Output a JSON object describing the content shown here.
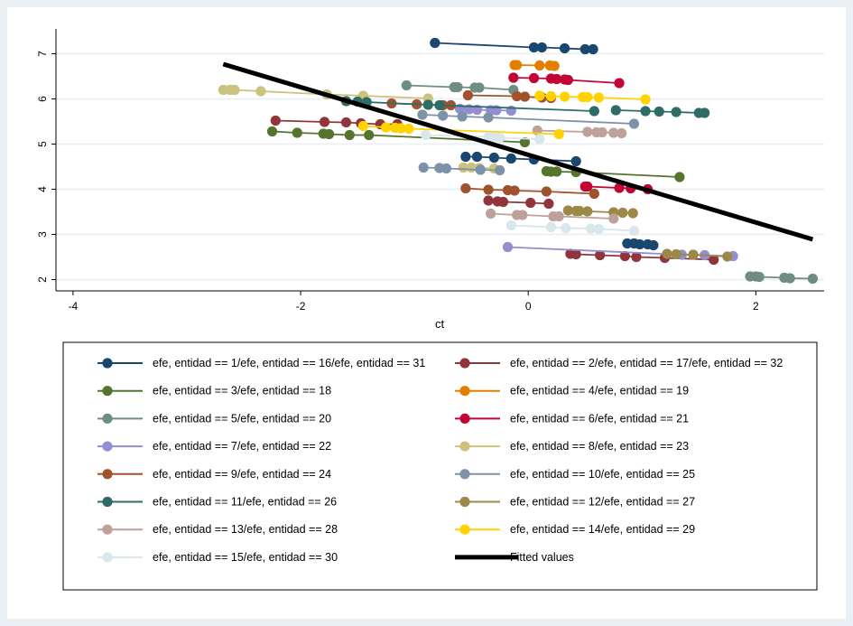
{
  "chart_data": {
    "type": "line",
    "title": "",
    "xlabel": "ct",
    "ylabel": "",
    "xlim": [
      -4.15,
      2.6
    ],
    "ylim": [
      1.75,
      7.55
    ],
    "xticks": [
      -4,
      -2,
      0,
      2
    ],
    "xtick_labels": [
      "-4",
      "-2",
      "0",
      "2"
    ],
    "yticks": [
      2,
      3,
      4,
      5,
      6,
      7
    ],
    "ytick_labels": [
      "2",
      "3",
      "4",
      "5",
      "6",
      "7"
    ],
    "grid": true,
    "legend_position": "bottom",
    "series": [
      {
        "name": "efe, entidad == 1/efe, entidad == 16/efe, entidad == 31",
        "color": "#1a476f",
        "points": [
          [
            -0.82,
            7.24
          ],
          [
            0.05,
            7.14
          ],
          [
            0.12,
            7.14
          ],
          [
            0.32,
            7.12
          ],
          [
            0.5,
            7.1
          ],
          [
            0.57,
            7.1
          ]
        ]
      },
      {
        "name": "efe, entidad == 1/efe, entidad == 16/efe, entidad == 31",
        "color": "#1a476f",
        "points": [
          [
            -0.55,
            4.72
          ],
          [
            -0.45,
            4.72
          ],
          [
            -0.3,
            4.7
          ],
          [
            -0.15,
            4.68
          ],
          [
            0.05,
            4.66
          ],
          [
            0.42,
            4.62
          ]
        ]
      },
      {
        "name": "efe, entidad == 1/efe, entidad == 16/efe, entidad == 31",
        "color": "#1a476f",
        "points": [
          [
            0.87,
            2.8
          ],
          [
            0.93,
            2.8
          ],
          [
            0.98,
            2.78
          ],
          [
            1.05,
            2.78
          ],
          [
            1.1,
            2.76
          ]
        ]
      },
      {
        "name": "efe, entidad == 2/efe, entidad == 17/efe, entidad == 32",
        "color": "#90353b",
        "points": [
          [
            -2.22,
            5.52
          ],
          [
            -1.79,
            5.49
          ],
          [
            -1.6,
            5.48
          ],
          [
            -1.47,
            5.46
          ],
          [
            -1.3,
            5.44
          ],
          [
            -1.15,
            5.44
          ]
        ]
      },
      {
        "name": "efe, entidad == 2/efe, entidad == 17/efe, entidad == 32",
        "color": "#90353b",
        "points": [
          [
            -0.35,
            3.75
          ],
          [
            -0.27,
            3.73
          ],
          [
            -0.22,
            3.72
          ],
          [
            0.02,
            3.7
          ],
          [
            0.18,
            3.68
          ]
        ]
      },
      {
        "name": "efe, entidad == 2/efe, entidad == 17/efe, entidad == 32",
        "color": "#90353b",
        "points": [
          [
            0.37,
            2.57
          ],
          [
            0.42,
            2.56
          ],
          [
            0.63,
            2.54
          ],
          [
            0.85,
            2.52
          ],
          [
            0.95,
            2.5
          ],
          [
            1.2,
            2.48
          ],
          [
            1.63,
            2.44
          ]
        ]
      },
      {
        "name": "efe, entidad == 3/efe, entidad == 18",
        "color": "#55752f",
        "points": [
          [
            -2.25,
            5.28
          ],
          [
            -2.03,
            5.25
          ],
          [
            -1.8,
            5.23
          ],
          [
            -1.75,
            5.22
          ],
          [
            -1.57,
            5.2
          ],
          [
            -1.4,
            5.2
          ],
          [
            -0.03,
            5.04
          ]
        ]
      },
      {
        "name": "efe, entidad == 3/efe, entidad == 18",
        "color": "#55752f",
        "points": [
          [
            0.16,
            4.4
          ],
          [
            0.2,
            4.39
          ],
          [
            0.25,
            4.39
          ],
          [
            0.42,
            4.38
          ],
          [
            1.33,
            4.27
          ]
        ]
      },
      {
        "name": "efe, entidad == 4/efe, entidad == 19",
        "color": "#e37e00",
        "points": [
          [
            -0.12,
            6.75
          ],
          [
            -0.1,
            6.75
          ],
          [
            0.1,
            6.74
          ],
          [
            0.19,
            6.74
          ],
          [
            0.23,
            6.73
          ]
        ]
      },
      {
        "name": "efe, entidad == 5/efe, entidad == 20",
        "color": "#6e8e84",
        "points": [
          [
            -1.07,
            6.3
          ],
          [
            -0.65,
            6.26
          ],
          [
            -0.62,
            6.26
          ],
          [
            -0.47,
            6.25
          ],
          [
            -0.43,
            6.25
          ],
          [
            -0.13,
            6.2
          ]
        ]
      },
      {
        "name": "efe, entidad == 5/efe, entidad == 20",
        "color": "#6e8e84",
        "points": [
          [
            1.95,
            2.07
          ],
          [
            2.0,
            2.07
          ],
          [
            2.03,
            2.06
          ],
          [
            2.25,
            2.04
          ],
          [
            2.3,
            2.03
          ],
          [
            2.5,
            2.02
          ]
        ]
      },
      {
        "name": "efe, entidad == 6/efe, entidad == 21",
        "color": "#c10534",
        "points": [
          [
            -0.13,
            6.47
          ],
          [
            0.05,
            6.46
          ],
          [
            0.2,
            6.45
          ],
          [
            0.25,
            6.44
          ],
          [
            0.32,
            6.43
          ],
          [
            0.35,
            6.42
          ],
          [
            0.8,
            6.35
          ]
        ]
      },
      {
        "name": "efe, entidad == 6/efe, entidad == 21",
        "color": "#c10534",
        "points": [
          [
            0.5,
            4.06
          ],
          [
            0.52,
            4.06
          ],
          [
            0.8,
            4.03
          ],
          [
            0.9,
            4.02
          ],
          [
            1.05,
            4.0
          ]
        ]
      },
      {
        "name": "efe, entidad == 7/efe, entidad == 22",
        "color": "#938dd2",
        "points": [
          [
            -0.6,
            5.78
          ],
          [
            -0.52,
            5.77
          ],
          [
            -0.45,
            5.76
          ],
          [
            -0.33,
            5.75
          ],
          [
            -0.28,
            5.75
          ],
          [
            -0.15,
            5.74
          ]
        ]
      },
      {
        "name": "efe, entidad == 7/efe, entidad == 22",
        "color": "#938dd2",
        "points": [
          [
            -0.18,
            2.72
          ],
          [
            1.35,
            2.55
          ],
          [
            1.45,
            2.55
          ],
          [
            1.55,
            2.54
          ],
          [
            1.8,
            2.52
          ]
        ]
      },
      {
        "name": "efe, entidad == 8/efe, entidad == 23",
        "color": "#cac27e",
        "points": [
          [
            -2.68,
            6.2
          ],
          [
            -2.62,
            6.2
          ],
          [
            -2.58,
            6.2
          ],
          [
            -2.35,
            6.17
          ],
          [
            -1.77,
            6.1
          ],
          [
            -1.45,
            6.07
          ],
          [
            -0.88,
            6.01
          ]
        ]
      },
      {
        "name": "efe, entidad == 8/efe, entidad == 23",
        "color": "#cac27e",
        "points": [
          [
            -0.57,
            4.48
          ],
          [
            -0.5,
            4.48
          ],
          [
            -0.43,
            4.47
          ],
          [
            -0.3,
            4.46
          ]
        ]
      },
      {
        "name": "efe, entidad == 9/efe, entidad == 24",
        "color": "#a0522d",
        "points": [
          [
            -0.53,
            6.08
          ],
          [
            -0.1,
            6.06
          ],
          [
            -0.03,
            6.05
          ],
          [
            0.12,
            6.03
          ],
          [
            0.2,
            6.02
          ]
        ]
      },
      {
        "name": "efe, entidad == 9/efe, entidad == 24",
        "color": "#a0522d",
        "points": [
          [
            -1.2,
            5.9
          ],
          [
            -0.98,
            5.88
          ],
          [
            -0.75,
            5.86
          ],
          [
            -0.68,
            5.86
          ]
        ]
      },
      {
        "name": "efe, entidad == 9/efe, entidad == 24",
        "color": "#a0522d",
        "points": [
          [
            -0.55,
            4.02
          ],
          [
            -0.35,
            3.99
          ],
          [
            -0.18,
            3.98
          ],
          [
            -0.12,
            3.97
          ],
          [
            0.16,
            3.95
          ],
          [
            0.58,
            3.9
          ]
        ]
      },
      {
        "name": "efe, entidad == 10/efe, entidad == 25",
        "color": "#7b92a8",
        "points": [
          [
            -0.93,
            5.65
          ],
          [
            -0.75,
            5.63
          ],
          [
            -0.58,
            5.61
          ],
          [
            -0.35,
            5.59
          ],
          [
            0.93,
            5.45
          ]
        ]
      },
      {
        "name": "efe, entidad == 10/efe, entidad == 25",
        "color": "#7b92a8",
        "points": [
          [
            -0.92,
            4.48
          ],
          [
            -0.78,
            4.47
          ],
          [
            -0.72,
            4.46
          ],
          [
            -0.42,
            4.43
          ],
          [
            -0.25,
            4.42
          ]
        ]
      },
      {
        "name": "efe, entidad == 11/efe, entidad == 26",
        "color": "#2d6d66",
        "points": [
          [
            -1.6,
            5.95
          ],
          [
            -1.5,
            5.94
          ],
          [
            -1.42,
            5.93
          ],
          [
            -0.88,
            5.87
          ],
          [
            -0.78,
            5.86
          ],
          [
            0.58,
            5.73
          ]
        ]
      },
      {
        "name": "efe, entidad == 11/efe, entidad == 26",
        "color": "#2d6d66",
        "points": [
          [
            0.77,
            5.75
          ],
          [
            1.03,
            5.73
          ],
          [
            1.15,
            5.72
          ],
          [
            1.3,
            5.71
          ],
          [
            1.5,
            5.69
          ],
          [
            1.55,
            5.69
          ]
        ]
      },
      {
        "name": "efe, entidad == 12/efe, entidad == 27",
        "color": "#9c8847",
        "points": [
          [
            0.35,
            3.53
          ],
          [
            0.42,
            3.52
          ],
          [
            0.45,
            3.52
          ],
          [
            0.52,
            3.51
          ],
          [
            0.75,
            3.49
          ],
          [
            0.83,
            3.48
          ],
          [
            0.92,
            3.47
          ]
        ]
      },
      {
        "name": "efe, entidad == 12/efe, entidad == 27",
        "color": "#9c8847",
        "points": [
          [
            1.22,
            2.57
          ],
          [
            1.3,
            2.56
          ],
          [
            1.45,
            2.55
          ],
          [
            1.75,
            2.51
          ]
        ]
      },
      {
        "name": "efe, entidad == 13/efe, entidad == 28",
        "color": "#bfa19c",
        "points": [
          [
            0.08,
            5.3
          ],
          [
            0.52,
            5.27
          ],
          [
            0.6,
            5.26
          ],
          [
            0.65,
            5.26
          ],
          [
            0.75,
            5.25
          ],
          [
            0.82,
            5.24
          ]
        ]
      },
      {
        "name": "efe, entidad == 13/efe, entidad == 28",
        "color": "#bfa19c",
        "points": [
          [
            -0.33,
            3.46
          ],
          [
            -0.1,
            3.43
          ],
          [
            -0.05,
            3.43
          ],
          [
            0.22,
            3.4
          ],
          [
            0.27,
            3.4
          ],
          [
            0.75,
            3.35
          ]
        ]
      },
      {
        "name": "efe, entidad == 14/efe, entidad == 29",
        "color": "#ffd200",
        "points": [
          [
            0.1,
            6.07
          ],
          [
            0.2,
            6.06
          ],
          [
            0.32,
            6.05
          ],
          [
            0.48,
            6.04
          ],
          [
            0.52,
            6.04
          ],
          [
            0.62,
            6.03
          ],
          [
            1.03,
            5.99
          ]
        ]
      },
      {
        "name": "efe, entidad == 14/efe, entidad == 29",
        "color": "#ffd200",
        "points": [
          [
            -1.45,
            5.4
          ],
          [
            -1.25,
            5.37
          ],
          [
            -1.17,
            5.36
          ],
          [
            -1.12,
            5.35
          ],
          [
            -1.05,
            5.34
          ],
          [
            0.27,
            5.22
          ]
        ]
      },
      {
        "name": "efe, entidad == 15/efe, entidad == 30",
        "color": "#d9e6eb",
        "points": [
          [
            -0.9,
            5.2
          ],
          [
            -0.35,
            5.16
          ],
          [
            -0.3,
            5.15
          ],
          [
            -0.25,
            5.14
          ],
          [
            0.1,
            5.11
          ]
        ]
      },
      {
        "name": "efe, entidad == 15/efe, entidad == 30",
        "color": "#d9e6eb",
        "points": [
          [
            -0.15,
            3.2
          ],
          [
            0.2,
            3.16
          ],
          [
            0.33,
            3.14
          ],
          [
            0.55,
            3.13
          ],
          [
            0.62,
            3.12
          ],
          [
            0.93,
            3.08
          ]
        ]
      }
    ],
    "fitted": {
      "name": "Fitted values",
      "color": "#000000",
      "points": [
        [
          -2.68,
          6.77
        ],
        [
          2.5,
          2.89
        ]
      ]
    },
    "legend": {
      "entries": [
        {
          "label": "efe, entidad == 1/efe, entidad == 16/efe, entidad == 31",
          "color": "#1a476f",
          "kind": "marker-line"
        },
        {
          "label": "efe, entidad == 2/efe, entidad == 17/efe, entidad == 32",
          "color": "#90353b",
          "kind": "marker-line"
        },
        {
          "label": "efe, entidad == 3/efe, entidad == 18",
          "color": "#55752f",
          "kind": "marker-line"
        },
        {
          "label": "efe, entidad == 4/efe, entidad == 19",
          "color": "#e37e00",
          "kind": "marker-line"
        },
        {
          "label": "efe, entidad == 5/efe, entidad == 20",
          "color": "#6e8e84",
          "kind": "marker-line"
        },
        {
          "label": "efe, entidad == 6/efe, entidad == 21",
          "color": "#c10534",
          "kind": "marker-line"
        },
        {
          "label": "efe, entidad == 7/efe, entidad == 22",
          "color": "#938dd2",
          "kind": "marker-line"
        },
        {
          "label": "efe, entidad == 8/efe, entidad == 23",
          "color": "#cac27e",
          "kind": "marker-line"
        },
        {
          "label": "efe, entidad == 9/efe, entidad == 24",
          "color": "#a0522d",
          "kind": "marker-line"
        },
        {
          "label": "efe, entidad == 10/efe, entidad == 25",
          "color": "#7b92a8",
          "kind": "marker-line"
        },
        {
          "label": "efe, entidad == 11/efe, entidad == 26",
          "color": "#2d6d66",
          "kind": "marker-line"
        },
        {
          "label": "efe, entidad == 12/efe, entidad == 27",
          "color": "#9c8847",
          "kind": "marker-line"
        },
        {
          "label": "efe, entidad == 13/efe, entidad == 28",
          "color": "#bfa19c",
          "kind": "marker-line"
        },
        {
          "label": "efe, entidad == 14/efe, entidad == 29",
          "color": "#ffd200",
          "kind": "marker-line"
        },
        {
          "label": "efe, entidad == 15/efe, entidad == 30",
          "color": "#d9e6eb",
          "kind": "marker-line"
        },
        {
          "label": "Fitted values",
          "color": "#000000",
          "kind": "thick-line"
        }
      ]
    }
  }
}
